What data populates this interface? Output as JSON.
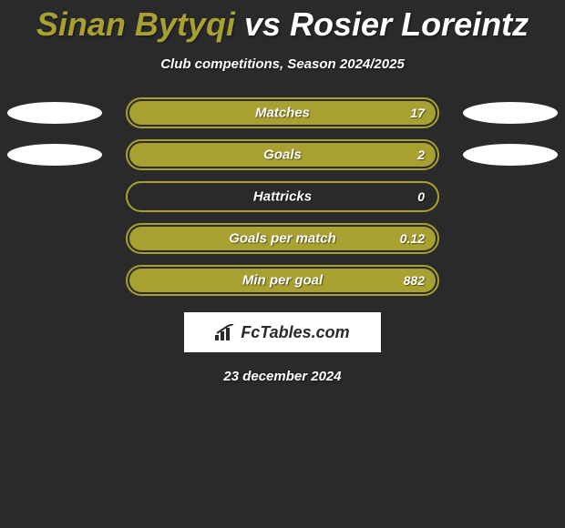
{
  "title": {
    "player1": "Sinan Bytyqi",
    "vs": "vs",
    "player2": "Rosier Loreintz",
    "player1_color": "#a8a030",
    "vs_color": "#ffffff",
    "player2_color": "#ffffff"
  },
  "subtitle": "Club competitions, Season 2024/2025",
  "chart": {
    "bar_border_color": "#a8a030",
    "bar_fill_color": "#a8a030",
    "background_color": "#2a2a2a",
    "oval_left_color": "#ffffff",
    "oval_right_color": "#ffffff",
    "rows": [
      {
        "label": "Matches",
        "value": "17",
        "fill_pct": 100,
        "show_ovals": true
      },
      {
        "label": "Goals",
        "value": "2",
        "fill_pct": 100,
        "show_ovals": true
      },
      {
        "label": "Hattricks",
        "value": "0",
        "fill_pct": 0,
        "show_ovals": false
      },
      {
        "label": "Goals per match",
        "value": "0.12",
        "fill_pct": 100,
        "show_ovals": false
      },
      {
        "label": "Min per goal",
        "value": "882",
        "fill_pct": 100,
        "show_ovals": false
      }
    ]
  },
  "logo_text": "FcTables.com",
  "date": "23 december 2024"
}
